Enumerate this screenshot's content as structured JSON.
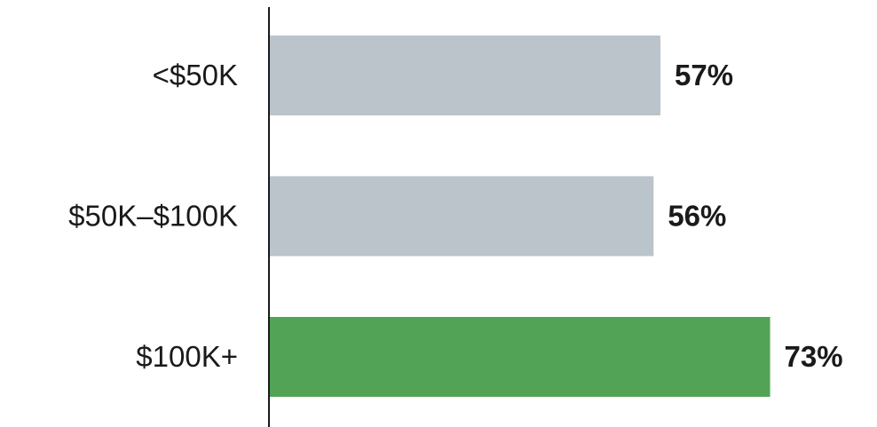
{
  "chart_data": {
    "type": "bar",
    "orientation": "horizontal",
    "categories": [
      "<$50K",
      "$50K–$100K",
      "$100K+"
    ],
    "values": [
      57,
      56,
      73
    ],
    "value_labels": [
      "57%",
      "56%",
      "73%"
    ],
    "unit": "%",
    "colors": [
      "#bac4ca",
      "#bac4ca",
      "#52a355"
    ],
    "highlight_color": "#52a355",
    "base_color": "#bac4ca",
    "axis_color": "#1a1a1a",
    "grid": false,
    "legend": "none"
  }
}
